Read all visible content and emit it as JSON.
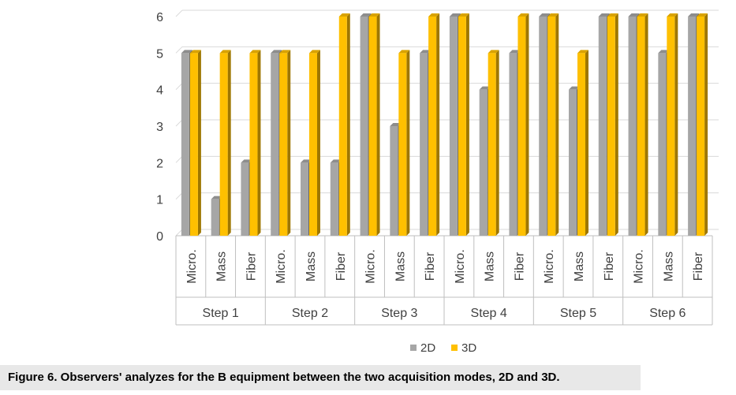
{
  "caption": "Figure 6. Observers' analyzes for the B equipment between the two acquisition modes, 2D and 3D.",
  "chart_data": {
    "type": "bar",
    "groups": [
      {
        "name": "Step 1",
        "categories": [
          "Micro.",
          "Mass",
          "Fiber"
        ]
      },
      {
        "name": "Step 2",
        "categories": [
          "Micro.",
          "Mass",
          "Fiber"
        ]
      },
      {
        "name": "Step 3",
        "categories": [
          "Micro.",
          "Mass",
          "Fiber"
        ]
      },
      {
        "name": "Step 4",
        "categories": [
          "Micro.",
          "Mass",
          "Fiber"
        ]
      },
      {
        "name": "Step 5",
        "categories": [
          "Micro.",
          "Mass",
          "Fiber"
        ]
      },
      {
        "name": "Step 6",
        "categories": [
          "Micro.",
          "Mass",
          "Fiber"
        ]
      }
    ],
    "series": [
      {
        "name": "2D",
        "color": "#a6a6a6",
        "values": [
          5,
          1,
          2,
          5,
          2,
          2,
          6,
          3,
          5,
          6,
          4,
          5,
          6,
          4,
          6,
          6,
          5,
          6
        ]
      },
      {
        "name": "3D",
        "color": "#ffc000",
        "values": [
          5,
          5,
          5,
          5,
          5,
          6,
          6,
          5,
          6,
          6,
          5,
          6,
          6,
          5,
          6,
          6,
          6,
          6
        ]
      }
    ],
    "yticks": [
      "0",
      "1",
      "2",
      "3",
      "4",
      "5",
      "6"
    ],
    "ylim": [
      0,
      6
    ],
    "legend_position": "bottom",
    "grid": true
  }
}
